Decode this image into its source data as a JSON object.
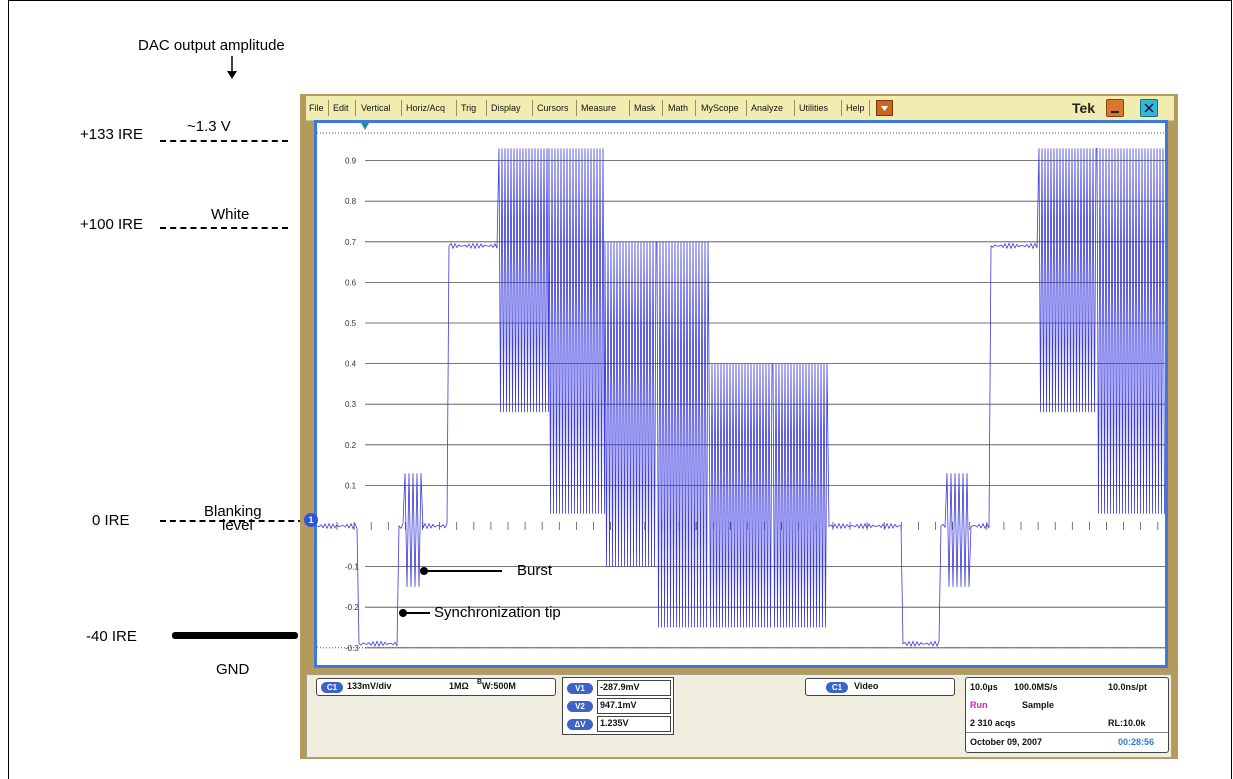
{
  "annotations": {
    "dac_title": "DAC output amplitude",
    "ire_133": "+133 IRE",
    "ire_100": "+100 IRE",
    "ire_0": "0 IRE",
    "ire_m40": "-40 IRE",
    "volt_13": "~1.3 V",
    "white": "White",
    "blanking_1": "Blanking",
    "blanking_2": "level",
    "gnd": "GND",
    "burst": "Burst",
    "sync_tip": "Synchronization tip"
  },
  "menu": {
    "items": [
      "File",
      "Edit",
      "Vertical",
      "Horiz/Acq",
      "Trig",
      "Display",
      "Cursors",
      "Measure",
      "Mask",
      "Math",
      "MyScope",
      "Analyze",
      "Utilities",
      "Help"
    ],
    "brand": "Tek",
    "minimize_label": "_",
    "close_label": "X",
    "dropdown_icon": "chevron-down-icon"
  },
  "plot": {
    "y_ticks": [
      "0.9",
      "0.8",
      "0.7",
      "0.6",
      "0.5",
      "0.4",
      "0.3",
      "0.2",
      "0.1",
      "-0.1",
      "-0.2",
      "-0.3"
    ],
    "channel_marker": "1",
    "trace_color": "#3a3ae0",
    "frame_color": "#3b7ad8"
  },
  "status": {
    "channel_badge": "C1",
    "scale": "133mV/div",
    "impedance": "1MΩ",
    "bandwidth_sup": "B",
    "bandwidth": "W:500M",
    "cursors": [
      {
        "badge": "V1",
        "value": "-287.9mV"
      },
      {
        "badge": "V2",
        "value": "947.1mV"
      },
      {
        "badge": "ΔV",
        "value": "1.235V"
      }
    ],
    "trigger_badge": "C1",
    "trigger_mode": "Video",
    "timebase": "10.0µs",
    "sample_rate": "100.0MS/s",
    "resolution": "10.0ns/pt",
    "run_state": "Run",
    "acq_mode": "Sample",
    "acqs": "2 310 acqs",
    "record_length": "RL:10.0k",
    "date": "October 09, 2007",
    "time": "00:28:56"
  }
}
